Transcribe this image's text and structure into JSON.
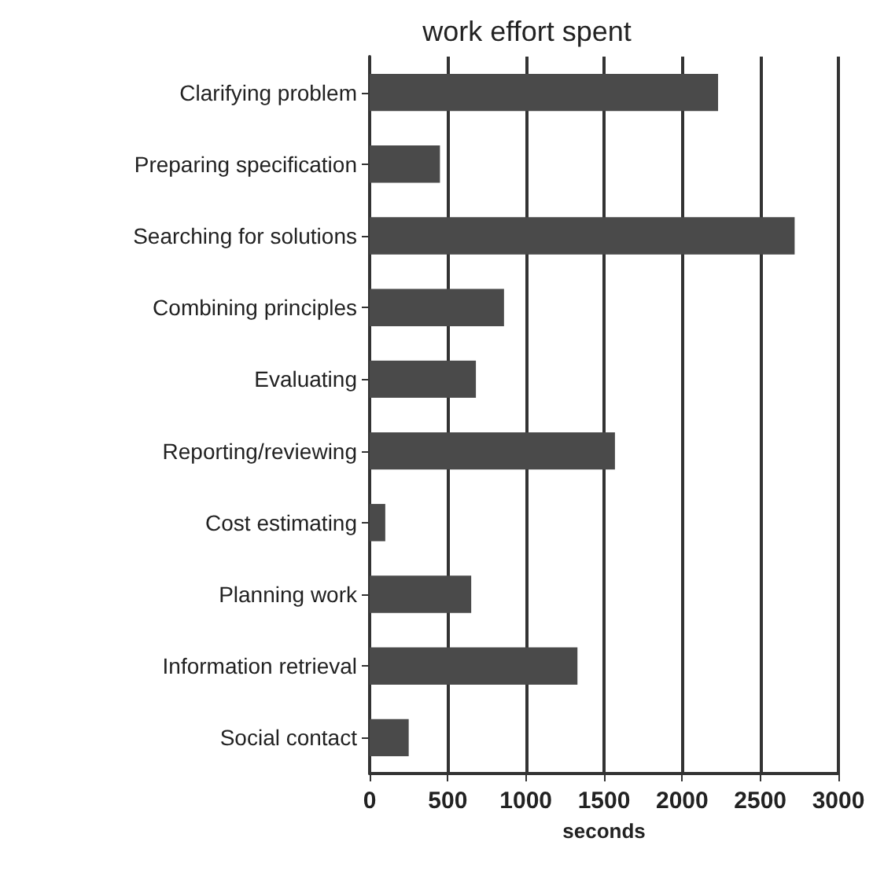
{
  "chart_data": {
    "type": "bar",
    "orientation": "horizontal",
    "title": "work effort spent",
    "xlabel": "seconds",
    "categories": [
      "Clarifying problem",
      "Preparing specification",
      "Searching for solutions",
      "Combining principles",
      "Evaluating",
      "Reporting/reviewing",
      "Cost estimating",
      "Planning work",
      "Information retrieval",
      "Social contact"
    ],
    "values": [
      2230,
      450,
      2720,
      860,
      680,
      1570,
      100,
      650,
      1330,
      250
    ],
    "color": "#4a4a4a",
    "xlim": [
      0,
      3000
    ],
    "xticks": [
      0,
      500,
      1000,
      1500,
      2000,
      2500,
      3000
    ],
    "grid": "x"
  }
}
